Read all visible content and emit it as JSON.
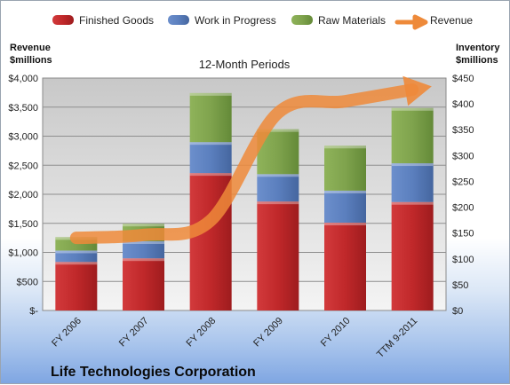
{
  "chart_data": {
    "type": "bar",
    "title": "12-Month Periods",
    "company": "Life Technologies Corporation",
    "left_axis_label": [
      "Revenue",
      "$millions"
    ],
    "right_axis_label": [
      "Inventory",
      "$millions"
    ],
    "categories": [
      "FY 2006",
      "FY 2007",
      "FY 2008",
      "FY 2009",
      "FY 2010",
      "TTM 9-2011"
    ],
    "left_axis": {
      "min": 0,
      "max": 4000,
      "ticks": [
        0,
        500,
        1000,
        1500,
        2000,
        2500,
        3000,
        3500,
        4000
      ],
      "tick_labels": [
        "$-",
        "$500",
        "$1,000",
        "$1,500",
        "$2,000",
        "$2,500",
        "$3,000",
        "$3,500",
        "$4,000"
      ]
    },
    "right_axis": {
      "min": 0,
      "max": 450,
      "ticks": [
        0,
        50,
        100,
        150,
        200,
        250,
        300,
        350,
        400,
        450
      ],
      "tick_labels": [
        "$0",
        "$50",
        "$100",
        "$150",
        "$200",
        "$250",
        "$300",
        "$350",
        "$400",
        "$450"
      ]
    },
    "series": [
      {
        "name": "Finished Goods",
        "axis": "right",
        "values": [
          94,
          101,
          266,
          211,
          170,
          210
        ],
        "color": "#c0282a"
      },
      {
        "name": "Work in Progress",
        "axis": "right",
        "values": [
          22,
          33,
          60,
          53,
          62,
          75
        ],
        "color": "#5b7fbe"
      },
      {
        "name": "Raw Materials",
        "axis": "right",
        "values": [
          26,
          34,
          95,
          87,
          87,
          107
        ],
        "color": "#7fa34d"
      },
      {
        "name": "Revenue",
        "axis": "left",
        "values": [
          1250,
          1300,
          1550,
          3400,
          3600,
          3800
        ],
        "color": "#ee8a3a"
      }
    ],
    "legend_position": "top",
    "grid": true
  }
}
